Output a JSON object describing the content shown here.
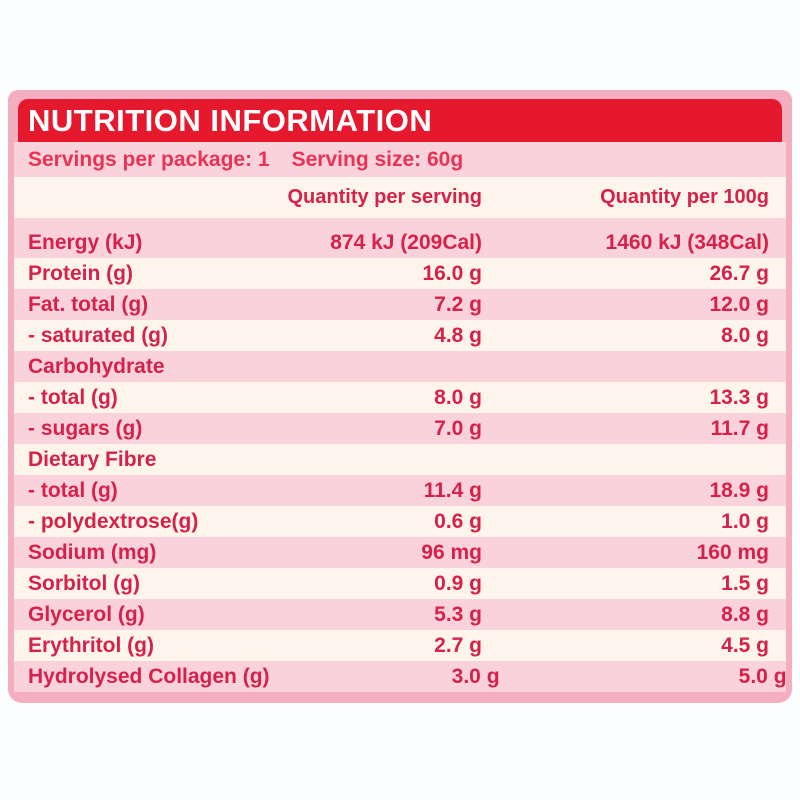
{
  "title": "NUTRITION INFORMATION",
  "serving_info": {
    "servings_per_package": "Servings per package: 1",
    "serving_size": "Serving size: 60g"
  },
  "columns": {
    "per_serving": "Quantity per serving",
    "per_100g": "Quantity per 100g"
  },
  "rows": [
    {
      "label": "Energy (kJ)",
      "per_serving": "874 kJ (209Cal)",
      "per_100g": "1460 kJ (348Cal)"
    },
    {
      "label": "Protein (g)",
      "per_serving": "16.0 g",
      "per_100g": "26.7 g"
    },
    {
      "label": "Fat. total (g)",
      "per_serving": "7.2 g",
      "per_100g": "12.0 g"
    },
    {
      "label": "- saturated (g)",
      "per_serving": "4.8 g",
      "per_100g": "8.0 g"
    },
    {
      "label": "Carbohydrate",
      "per_serving": "",
      "per_100g": ""
    },
    {
      "label": "- total (g)",
      "per_serving": "8.0 g",
      "per_100g": "13.3 g"
    },
    {
      "label": "- sugars (g)",
      "per_serving": "7.0 g",
      "per_100g": "11.7 g"
    },
    {
      "label": "Dietary Fibre",
      "per_serving": "",
      "per_100g": ""
    },
    {
      "label": "- total (g)",
      "per_serving": "11.4 g",
      "per_100g": "18.9 g"
    },
    {
      "label": "- polydextrose(g)",
      "per_serving": "0.6 g",
      "per_100g": "1.0 g"
    },
    {
      "label": "Sodium (mg)",
      "per_serving": "96 mg",
      "per_100g": "160 mg"
    },
    {
      "label": "Sorbitol (g)",
      "per_serving": "0.9 g",
      "per_100g": "1.5 g"
    },
    {
      "label": "Glycerol (g)",
      "per_serving": "5.3 g",
      "per_100g": "8.8 g"
    },
    {
      "label": "Erythritol (g)",
      "per_serving": "2.7 g",
      "per_100g": "4.5 g"
    },
    {
      "label": "Hydrolysed Collagen (g)",
      "per_serving": "3.0 g",
      "per_100g": "5.0 g"
    }
  ],
  "colors": {
    "header_red": "#e6182e",
    "title_text": "#ffffff",
    "panel_border_pink": "#f5adc0",
    "row_pink": "#f9d2dc",
    "row_cream": "#fdf5ec",
    "table_text": "#d6224a",
    "servings_text": "#ea3354"
  }
}
